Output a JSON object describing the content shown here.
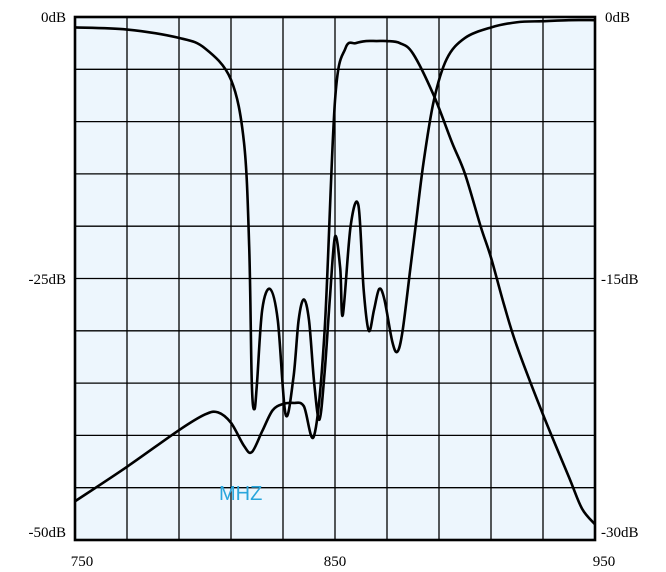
{
  "chart_data": {
    "type": "line",
    "title": "",
    "xlabel": "MHZ",
    "xlim": [
      750,
      950
    ],
    "x_ticks": [
      "750",
      "850",
      "950"
    ],
    "y_left": {
      "range": [
        -50,
        0
      ],
      "ticks": [
        "0dB",
        "-25dB",
        "-50dB"
      ]
    },
    "y_right": {
      "range": [
        -30,
        0
      ],
      "ticks": [
        "0dB",
        "-15dB",
        "-30dB"
      ]
    },
    "grid": true,
    "colors": {
      "plot_bg": "#edf6fd",
      "grid": "#000000",
      "trace": "#000000",
      "unit_label": "#2aa6dc"
    },
    "series": [
      {
        "axis": "left",
        "x": [
          750,
          770,
          790,
          800,
          805,
          810,
          815,
          818,
          822,
          826,
          830,
          834,
          838,
          842,
          846,
          850,
          854,
          858,
          862,
          866,
          870,
          875,
          880,
          888,
          895,
          900,
          906,
          910,
          915,
          920,
          930,
          940,
          945,
          950
        ],
        "y": [
          -46.3,
          -43.0,
          -39.5,
          -38.0,
          -37.8,
          -38.8,
          -41.0,
          -41.6,
          -39.6,
          -37.6,
          -37.0,
          -36.9,
          -37.2,
          -40.0,
          -30.0,
          -8.0,
          -3.0,
          -2.5,
          -2.3,
          -2.3,
          -2.3,
          -2.5,
          -3.5,
          -7.5,
          -12.0,
          -15.0,
          -20.0,
          -23.0,
          -27.5,
          -31.5,
          -38.0,
          -44.0,
          -47.0,
          -48.5
        ]
      },
      {
        "axis": "left",
        "x": [
          750,
          770,
          790,
          800,
          810,
          815,
          817,
          818,
          819,
          820,
          822,
          825,
          828,
          831,
          834,
          836,
          838,
          840,
          842,
          844,
          846,
          848,
          850,
          852,
          853,
          856,
          859,
          861,
          863,
          865,
          867,
          869,
          872,
          874,
          876,
          879,
          881,
          884,
          888,
          893,
          900,
          910,
          920,
          930,
          940,
          950
        ],
        "y": [
          -1.0,
          -1.2,
          -2.0,
          -3.0,
          -6.0,
          -12.0,
          -22.0,
          -35.0,
          -37.5,
          -35.0,
          -28.0,
          -26.0,
          -29.0,
          -38.0,
          -34.5,
          -29.0,
          -27.0,
          -29.0,
          -35.0,
          -38.5,
          -34.0,
          -27.0,
          -21.0,
          -24.0,
          -28.5,
          -20.0,
          -18.0,
          -26.0,
          -30.0,
          -28.0,
          -26.0,
          -27.0,
          -31.0,
          -32.0,
          -30.0,
          -24.0,
          -20.0,
          -14.0,
          -8.0,
          -4.0,
          -2.0,
          -1.0,
          -0.5,
          -0.4,
          -0.3,
          -0.3
        ]
      }
    ]
  }
}
